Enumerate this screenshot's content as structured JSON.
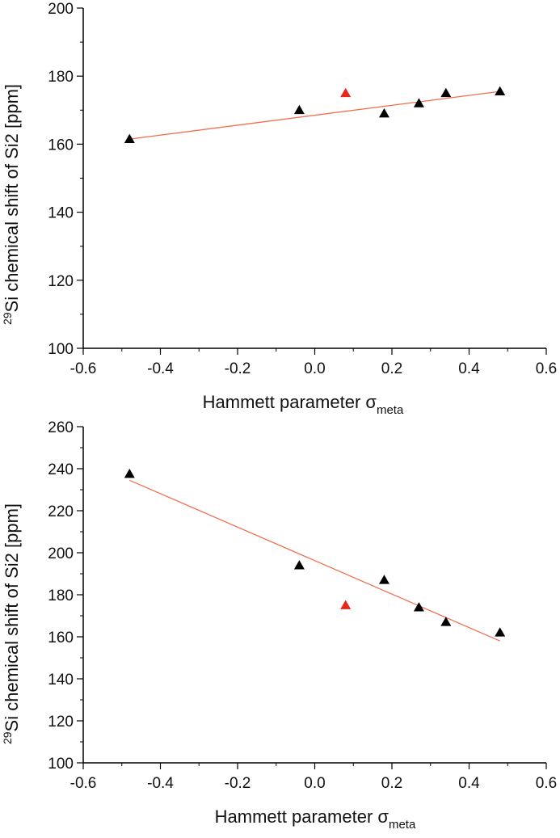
{
  "chart_data": [
    {
      "type": "scatter",
      "xlabel": "Hammett parameter",
      "xlabel_symbol": "σ",
      "xlabel_subscript": "meta",
      "ylabel_superscript": "29",
      "ylabel": "Si chemical shift of Si2 [ppm]",
      "xlim": [
        -0.6,
        0.6
      ],
      "ylim": [
        100,
        200
      ],
      "xticks": [
        "-0.6",
        "-0.4",
        "-0.2",
        "0.0",
        "0.2",
        "0.4",
        "0.6"
      ],
      "yticks": [
        "100",
        "120",
        "140",
        "160",
        "180",
        "200"
      ],
      "grid": false,
      "colors": {
        "point": "#000000",
        "highlight": "#e8271c",
        "fit": "#f07050"
      },
      "points": [
        {
          "x": -0.48,
          "y": 161.5
        },
        {
          "x": -0.04,
          "y": 170.0
        },
        {
          "x": 0.18,
          "y": 169.0
        },
        {
          "x": 0.27,
          "y": 172.0
        },
        {
          "x": 0.34,
          "y": 175.0
        },
        {
          "x": 0.48,
          "y": 175.5
        }
      ],
      "highlight_points": [
        {
          "x": 0.08,
          "y": 175.0
        }
      ],
      "fit_line": {
        "x": [
          -0.48,
          0.48
        ],
        "y": [
          161.5,
          175.5
        ]
      }
    },
    {
      "type": "scatter",
      "xlabel": "Hammett parameter",
      "xlabel_symbol": "σ",
      "xlabel_subscript": "meta",
      "ylabel_superscript": "29",
      "ylabel": "Si chemical shift of Si2 [ppm]",
      "xlim": [
        -0.6,
        0.6
      ],
      "ylim": [
        100,
        260
      ],
      "xticks": [
        "-0.6",
        "-0.4",
        "-0.2",
        "0.0",
        "0.2",
        "0.4",
        "0.6"
      ],
      "yticks": [
        "100",
        "120",
        "140",
        "160",
        "180",
        "200",
        "220",
        "240",
        "260"
      ],
      "grid": false,
      "colors": {
        "point": "#000000",
        "highlight": "#e8271c",
        "fit": "#f07050"
      },
      "points": [
        {
          "x": -0.48,
          "y": 237.5
        },
        {
          "x": -0.04,
          "y": 194.0
        },
        {
          "x": 0.18,
          "y": 187.0
        },
        {
          "x": 0.27,
          "y": 174.0
        },
        {
          "x": 0.34,
          "y": 167.0
        },
        {
          "x": 0.48,
          "y": 162.0
        }
      ],
      "highlight_points": [
        {
          "x": 0.08,
          "y": 175.0
        }
      ],
      "fit_line": {
        "x": [
          -0.48,
          0.48
        ],
        "y": [
          234.5,
          158.0
        ]
      }
    }
  ]
}
